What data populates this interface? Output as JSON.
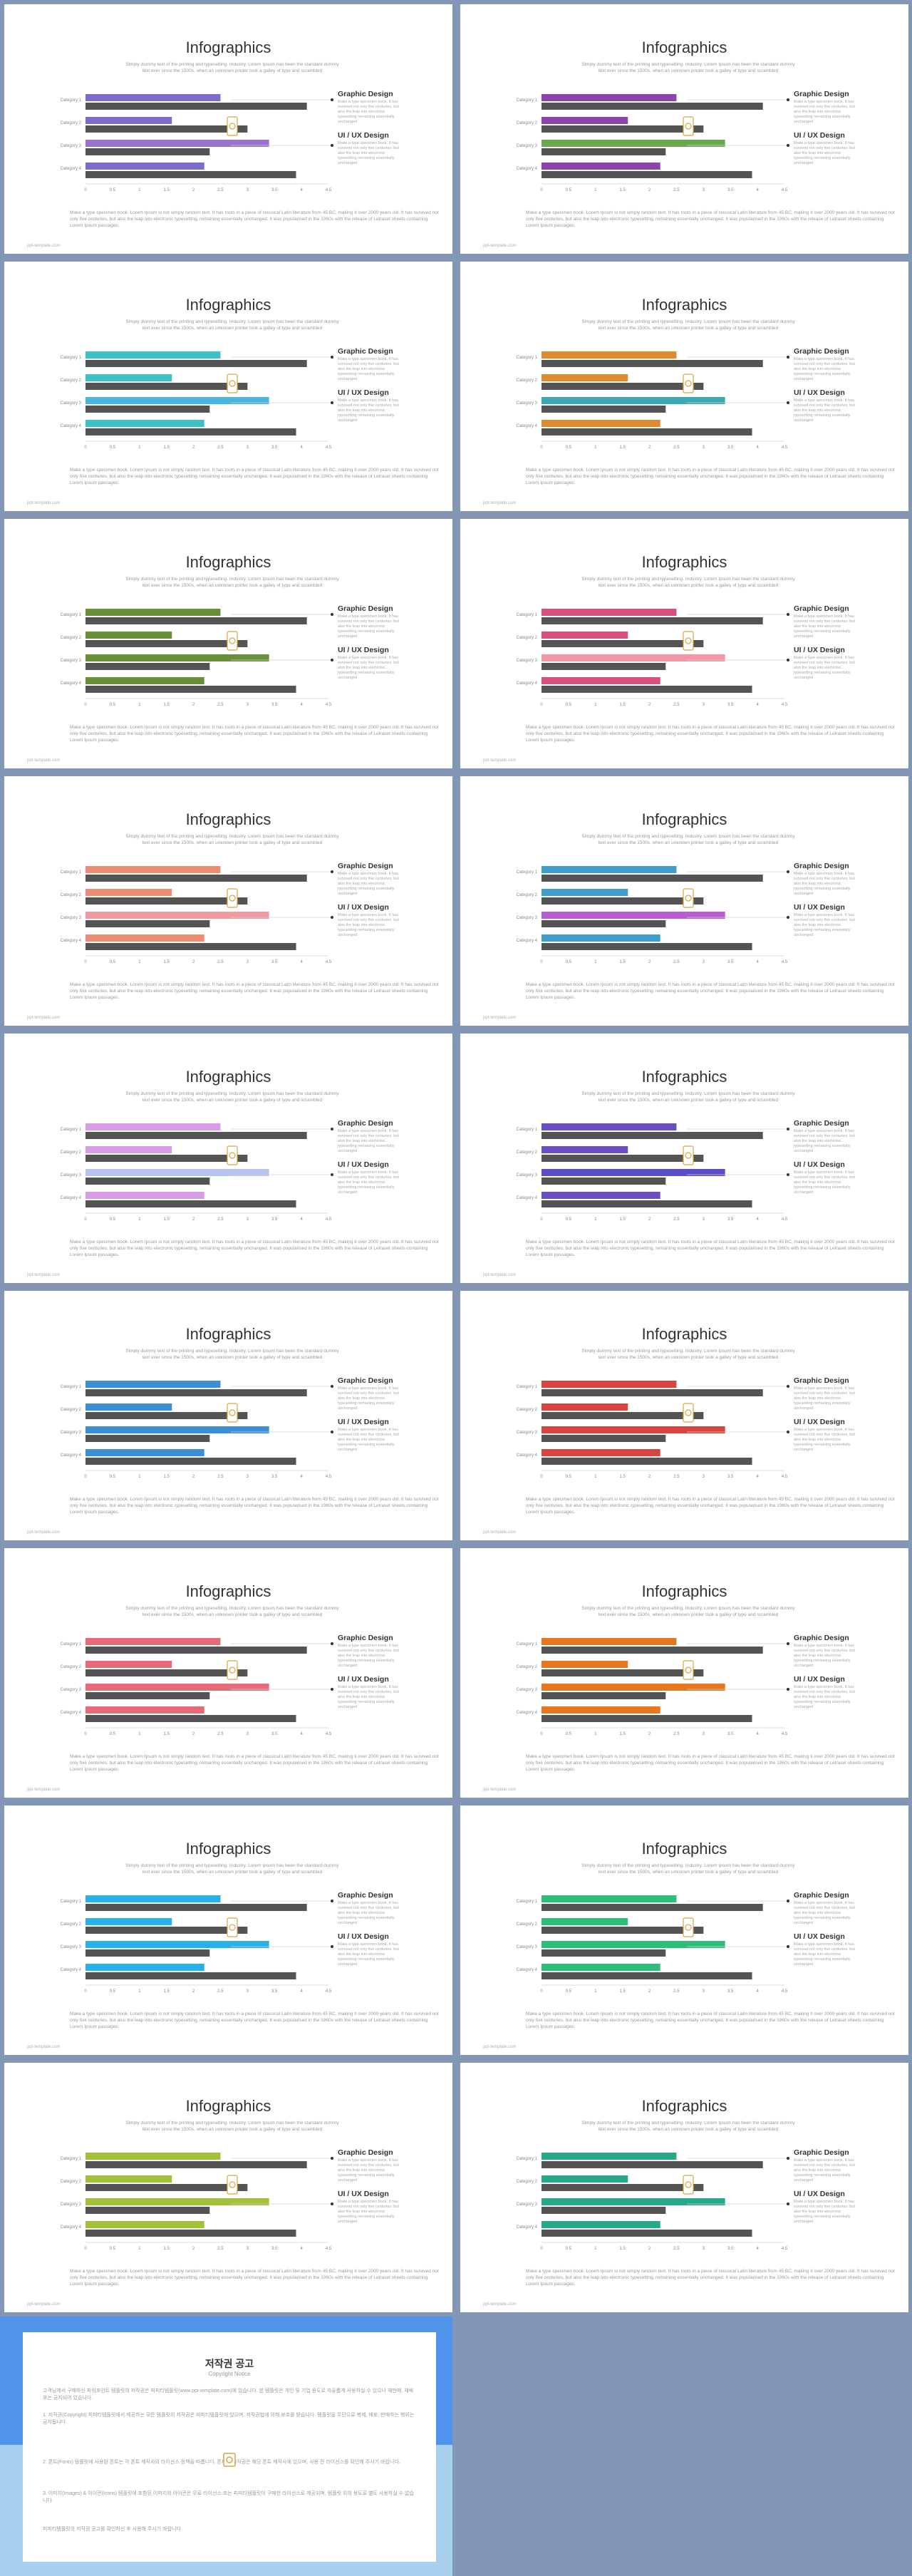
{
  "slide_common": {
    "title": "Infographics",
    "subtitle": "Simply dummy text of the printing and typesetting. Industry. Lorem Ipsum has been the standard dummy text ever since the 1500s, when an unknown printer took a galley of type and scrambled",
    "right_title_1": "Graphic Design",
    "right_text_1": "Make a type specimen book. It has survived not only five centuries, but also the leap into electronic typesetting remaining essentially unchanged",
    "right_title_2": "UI / UX Design",
    "right_text_2": "Make a type specimen book. It has survived not only five centuries, but also the leap into electronic typesetting remaining essentially unchanged",
    "body": "Make a type specimen book. Lorem Ipsum is not simply random text. It has roots in a piece of classical Latin literature from 45 BC, making it over 2000 years old. It has survived not only five centuries, but also the leap into electronic typesetting, remaining essentially unchanged. It was popularised in the 1960s with the release of Letraset sheets containing Lorem Ipsum passages.",
    "footer": "ppt-template.com"
  },
  "chart_data": {
    "type": "bar",
    "orientation": "horizontal",
    "categories": [
      "Category 1",
      "Category 2",
      "Category 3",
      "Category 4"
    ],
    "series": [
      {
        "values": [
          2.5,
          1.6,
          3.4,
          2.2
        ]
      },
      {
        "values": [
          4.1,
          3.0,
          2.3,
          3.9
        ]
      }
    ],
    "xlim": [
      0,
      4.5
    ],
    "ticks": [
      "0",
      "0.5",
      "1",
      "1.5",
      "2",
      "2.5",
      "3",
      "3.5",
      "4",
      "4.5"
    ],
    "dark_series_color": "#545454"
  },
  "slide_accents": [
    [
      "#7b6cc9",
      "#9b72cf"
    ],
    [
      "#8e44ad",
      "#6aa84f"
    ],
    [
      "#3bc1c7",
      "#48b6e0"
    ],
    [
      "#e0892e",
      "#3ba9b8"
    ],
    [
      "#6b8e3a",
      "#6b8e3a"
    ],
    [
      "#d64f7e",
      "#f097a8"
    ],
    [
      "#ee8c72",
      "#f09aa0"
    ],
    [
      "#3f9ec9",
      "#b95bd1"
    ],
    [
      "#d89de6",
      "#b7c3f0"
    ],
    [
      "#6a4fc3",
      "#5b4dc8"
    ],
    [
      "#3a8fd6",
      "#3a8fd6"
    ],
    [
      "#d9453e",
      "#d9453e"
    ],
    [
      "#e56b78",
      "#e56b78"
    ],
    [
      "#e5781f",
      "#e5781f"
    ],
    [
      "#26b1e6",
      "#26b1e6"
    ],
    [
      "#2dbf7a",
      "#2dbf7a"
    ],
    [
      "#a4c13a",
      "#a4c13a"
    ],
    [
      "#26a88b",
      "#26a88b"
    ]
  ],
  "notice": {
    "title": "저작권 공고",
    "subtitle": "Copyright Notice",
    "p1": "고객님께서 구매하신 파워포인트 템플릿의 저작권은 피피티템플릿(www.ppt-template.com)에 있습니다. 본 템플릿은 개인 및 기업 용도로 자유롭게 사용하실 수 있으나 재판매, 재배포는 금지되어 있습니다.",
    "p2": "1. 저작권(Copyright) 피피티템플릿에서 제공하는 모든 템플릿의 저작권은 피피티템플릿에 있으며, 저작권법에 의해 보호를 받습니다. 템플릿을 무단으로 복제, 배포, 판매하는 행위는 금지됩니다.",
    "p3": "2. 폰트(Fonts) 템플릿에 사용된 폰트는 각 폰트 제작사의 라이선스 정책을 따릅니다. 폰트의 저작권은 해당 폰트 제작사에 있으며, 사용 전 라이선스를 확인해 주시기 바랍니다.",
    "p4": "3. 이미지(Images) & 아이콘(Icons) 템플릿에 포함된 이미지와 아이콘은 무료 라이선스 또는 피피티템플릿이 구매한 라이선스로 제공되며, 템플릿 외의 용도로 별도 사용하실 수 없습니다.",
    "p5": "피피티템플릿의 저작권 공고를 확인하신 후 사용해 주시기 바랍니다."
  }
}
